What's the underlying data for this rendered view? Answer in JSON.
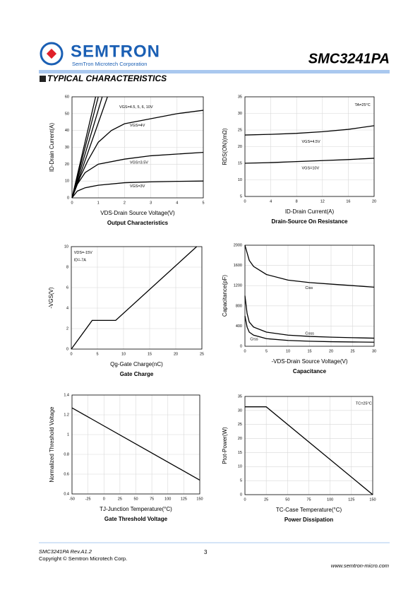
{
  "header": {
    "logo": "SEMTRON",
    "company": "SemTron Microtech Corporation",
    "part": "SMC3241PA"
  },
  "section_title": "TYPICAL CHARACTERISTICS",
  "chart_data": [
    {
      "type": "line",
      "title": "Output Characteristics",
      "x_label": "VDS-Drain Source Voltage(V)",
      "y_label": "ID-Drain Current(A)",
      "xlim": [
        0,
        5
      ],
      "xticks": [
        0,
        1,
        2,
        3,
        4,
        5
      ],
      "ylim": [
        0,
        60
      ],
      "yticks": [
        0,
        10,
        20,
        30,
        40,
        50,
        60
      ],
      "grid": true,
      "series": [
        {
          "color": "#000000",
          "x": [
            0,
            0.2,
            0.5,
            1,
            2,
            3,
            4,
            5
          ],
          "values": [
            0,
            4,
            6,
            7.5,
            9,
            9.5,
            9.8,
            10
          ]
        },
        {
          "color": "#000000",
          "x": [
            0,
            0.2,
            0.5,
            1,
            2,
            3,
            4,
            5
          ],
          "values": [
            0,
            8,
            15,
            20,
            23,
            25,
            26,
            27
          ]
        },
        {
          "color": "#000000",
          "x": [
            0,
            0.3,
            0.6,
            1,
            1.5,
            2,
            3,
            4,
            5
          ],
          "values": [
            0,
            12,
            22,
            33,
            40,
            44,
            47,
            50,
            52
          ]
        },
        {
          "color": "#000000",
          "x": [
            0,
            0.9
          ],
          "values": [
            0,
            60
          ]
        },
        {
          "color": "#000000",
          "x": [
            0,
            1.0
          ],
          "values": [
            0,
            60
          ]
        },
        {
          "color": "#000000",
          "x": [
            0,
            1.15
          ],
          "values": [
            0,
            60
          ]
        },
        {
          "color": "#000000",
          "x": [
            0,
            1.35
          ],
          "values": [
            0,
            60
          ]
        }
      ],
      "annotations": [
        {
          "text": "VGS=4.5, 5, 6, 10V",
          "x": 1.8,
          "y": 54
        },
        {
          "text": "VGS=4V",
          "x": 2.2,
          "y": 43
        },
        {
          "text": "VGS=3.5V",
          "x": 2.2,
          "y": 21
        },
        {
          "text": "VGS=3V",
          "x": 2.2,
          "y": 7
        }
      ]
    },
    {
      "type": "line",
      "title": "Drain-Source On Resistance",
      "x_label": "ID-Drain Current(A)",
      "y_label": "RDS(ON)(mΩ)",
      "xlim": [
        0,
        20
      ],
      "xticks": [
        0,
        4,
        8,
        12,
        16,
        20
      ],
      "ylim": [
        5,
        35
      ],
      "yticks": [
        5,
        10,
        15,
        20,
        25,
        30,
        35
      ],
      "grid": true,
      "series": [
        {
          "color": "#000000",
          "x": [
            0,
            4,
            8,
            12,
            16,
            20
          ],
          "values": [
            23.5,
            23.7,
            24,
            24.5,
            25.2,
            26.3
          ]
        },
        {
          "color": "#000000",
          "x": [
            0,
            4,
            8,
            12,
            16,
            20
          ],
          "values": [
            15,
            15.2,
            15.5,
            15.8,
            16.1,
            16.5
          ]
        }
      ],
      "annotations": [
        {
          "text": "TA=25°C",
          "x": 17,
          "y": 32.5
        },
        {
          "text": "VGS=4.5V",
          "x": 8.8,
          "y": 21.5
        },
        {
          "text": "VGS=10V",
          "x": 8.8,
          "y": 13.5
        }
      ]
    },
    {
      "type": "line",
      "title": "Gate Charge",
      "x_label": "Qg-Gate Charge(nC)",
      "y_label": "-VGS(V)",
      "xlim": [
        0,
        25
      ],
      "xticks": [
        0,
        5,
        10,
        15,
        20,
        25
      ],
      "ylim": [
        0,
        10
      ],
      "yticks": [
        0,
        2,
        4,
        6,
        8,
        10
      ],
      "grid": true,
      "series": [
        {
          "color": "#000000",
          "x": [
            0,
            4,
            8.5,
            24
          ],
          "values": [
            0,
            2.8,
            2.8,
            10
          ]
        }
      ],
      "annotations": [
        {
          "text": "VDS=-15V",
          "x": 0.5,
          "y": 9.4
        },
        {
          "text": "ID=-7A",
          "x": 0.5,
          "y": 8.7
        }
      ]
    },
    {
      "type": "line",
      "title": "Capacitance",
      "x_label": "-VDS-Drain Source Voltage(V)",
      "y_label": "Capacitance(pF)",
      "xlim": [
        0,
        30
      ],
      "xticks": [
        0,
        5,
        10,
        15,
        20,
        25,
        30
      ],
      "ylim": [
        0,
        2000
      ],
      "yticks": [
        0,
        400,
        800,
        1200,
        1600,
        2000
      ],
      "grid": true,
      "series": [
        {
          "color": "#000000",
          "x": [
            0,
            1,
            2,
            5,
            10,
            15,
            20,
            25,
            30
          ],
          "values": [
            2000,
            1700,
            1580,
            1420,
            1310,
            1260,
            1230,
            1200,
            1170
          ]
        },
        {
          "color": "#000000",
          "x": [
            0,
            0.5,
            1,
            2,
            5,
            10,
            15,
            20,
            25,
            30
          ],
          "values": [
            1000,
            650,
            480,
            380,
            280,
            220,
            195,
            180,
            170,
            160
          ]
        },
        {
          "color": "#000000",
          "x": [
            0,
            0.5,
            1,
            2,
            5,
            10,
            15,
            20,
            25,
            30
          ],
          "values": [
            600,
            380,
            280,
            220,
            150,
            115,
            100,
            90,
            85,
            80
          ]
        }
      ],
      "annotations": [
        {
          "text": "Ciss",
          "x": 14,
          "y": 1150
        },
        {
          "text": "Coss",
          "x": 14,
          "y": 250
        },
        {
          "text": "Crss",
          "x": 1.2,
          "y": 140
        }
      ]
    },
    {
      "type": "line",
      "title": "Gate Threshold Voltage",
      "x_label": "TJ-Junction Temperature(°C)",
      "y_label": "Normalized Threshold Voltage",
      "xlim": [
        -50,
        150
      ],
      "xticks": [
        -50,
        -25,
        0,
        25,
        50,
        75,
        100,
        125,
        150
      ],
      "ylim": [
        0.4,
        1.4
      ],
      "yticks": [
        0.4,
        0.6,
        0.8,
        1,
        1.2,
        1.4
      ],
      "grid": true,
      "series": [
        {
          "color": "#000000",
          "x": [
            -50,
            150
          ],
          "values": [
            1.27,
            0.54
          ]
        }
      ],
      "annotations": []
    },
    {
      "type": "line",
      "title": "Power Dissipation",
      "x_label": "TC-Case Temperature(°C)",
      "y_label": "Ptot-Power(W)",
      "xlim": [
        0,
        150
      ],
      "xticks": [
        0,
        25,
        50,
        75,
        100,
        125,
        150
      ],
      "ylim": [
        0,
        35
      ],
      "yticks": [
        0,
        5,
        10,
        15,
        20,
        25,
        30,
        35
      ],
      "grid": true,
      "series": [
        {
          "color": "#000000",
          "x": [
            0,
            25,
            150
          ],
          "values": [
            31.3,
            31.3,
            0
          ]
        }
      ],
      "annotations": [
        {
          "text": "TC=25°C",
          "x": 130,
          "y": 32.5
        }
      ]
    }
  ],
  "footer": {
    "revision": "SMC3241PA Rev.A1.2",
    "copyright": "Copyright © Semtron Microtech Corp.",
    "page": "3",
    "website": "www.semtron-micro.com"
  }
}
